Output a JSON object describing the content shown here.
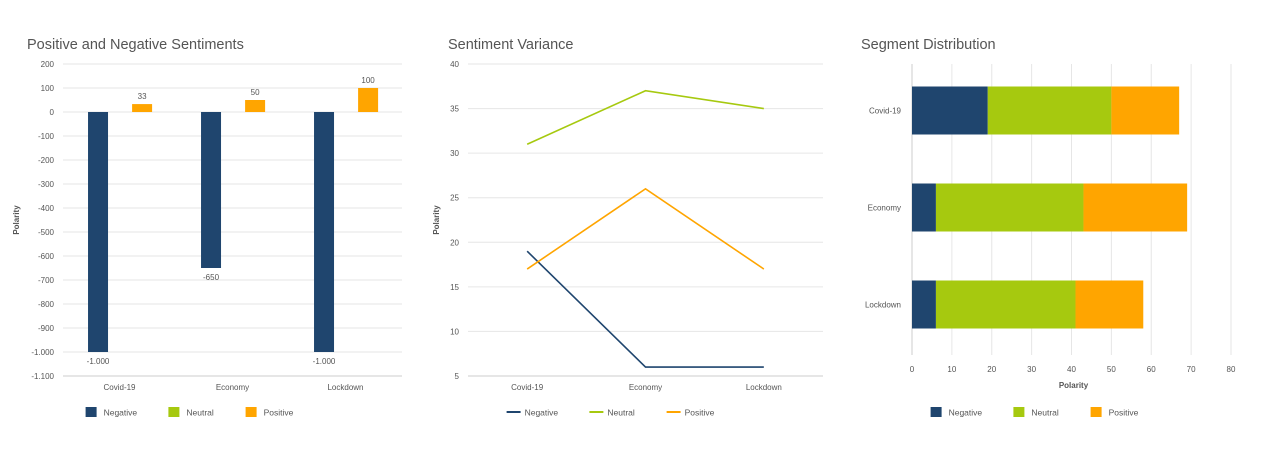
{
  "colors": {
    "negative": "#1f456e",
    "neutral": "#a6c90f",
    "positive": "#ffa500"
  },
  "chart_data": [
    {
      "type": "bar",
      "title": "Positive and Negative Sentiments",
      "ylabel": "Polarity",
      "xlabel": "",
      "ylim": [
        -1100,
        200
      ],
      "yticks": [
        200,
        100,
        0,
        -100,
        -200,
        -300,
        -400,
        -500,
        -600,
        -700,
        -800,
        -900,
        -1000,
        -1100
      ],
      "ytick_labels": [
        "200",
        "100",
        "0",
        "-100",
        "-200",
        "-300",
        "-400",
        "-500",
        "-600",
        "-700",
        "-800",
        "-900",
        "-1.000",
        "-1.100"
      ],
      "categories": [
        "Covid-19",
        "Economy",
        "Lockdown"
      ],
      "series": [
        {
          "name": "Negative",
          "values": [
            -1000,
            -650,
            -1000
          ],
          "labels": [
            "-1.000",
            "-650",
            "-1.000"
          ]
        },
        {
          "name": "Positive",
          "values": [
            33,
            50,
            100
          ],
          "labels": [
            "33",
            "50",
            "100"
          ]
        }
      ],
      "legend": [
        "Negative",
        "Neutral",
        "Positive"
      ],
      "legend_position": "bottom",
      "grid": true
    },
    {
      "type": "line",
      "title": "Sentiment Variance",
      "ylabel": "Polarity",
      "xlabel": "",
      "ylim": [
        5,
        40
      ],
      "yticks": [
        40,
        35,
        30,
        25,
        20,
        15,
        10,
        5
      ],
      "categories": [
        "Covid-19",
        "Economy",
        "Lockdown"
      ],
      "series": [
        {
          "name": "Negative",
          "values": [
            19,
            6,
            6
          ]
        },
        {
          "name": "Neutral",
          "values": [
            31,
            37,
            35
          ]
        },
        {
          "name": "Positive",
          "values": [
            17,
            26,
            17
          ]
        }
      ],
      "legend": [
        "Negative",
        "Neutral",
        "Positive"
      ],
      "legend_position": "bottom",
      "grid": true
    },
    {
      "type": "bar",
      "orientation": "horizontal",
      "stacked": true,
      "title": "Segment Distribution",
      "xlabel": "Polarity",
      "ylabel": "",
      "xlim": [
        0,
        80
      ],
      "xticks": [
        0,
        10,
        20,
        30,
        40,
        50,
        60,
        70,
        80
      ],
      "categories": [
        "Covid-19",
        "Economy",
        "Lockdown"
      ],
      "series": [
        {
          "name": "Negative",
          "values": [
            19,
            6,
            6
          ]
        },
        {
          "name": "Neutral",
          "values": [
            31,
            37,
            35
          ]
        },
        {
          "name": "Positive",
          "values": [
            17,
            26,
            17
          ]
        }
      ],
      "legend": [
        "Negative",
        "Neutral",
        "Positive"
      ],
      "legend_position": "bottom",
      "grid": true
    }
  ]
}
